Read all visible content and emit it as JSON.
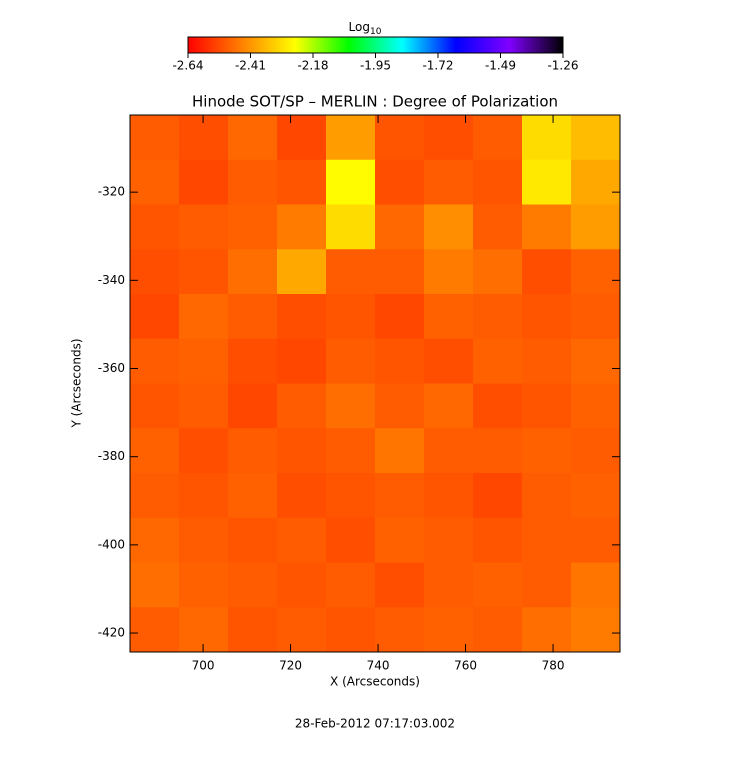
{
  "chart_data": {
    "type": "heatmap",
    "title": "Hinode SOT/SP – MERLIN : Degree of Polarization",
    "x_label": "X (Arcseconds)",
    "y_label": "Y (Arcseconds)",
    "footer": "28-Feb-2012 07:17:03.002",
    "colorbar_title": "Log",
    "colorbar_title_subscript": "10",
    "colorbar_lim": [
      -2.64,
      -1.26
    ],
    "colorbar_ticks": [
      -2.64,
      -2.41,
      -2.18,
      -1.95,
      -1.72,
      -1.49,
      -1.26
    ],
    "colormap": [
      "#ff0000",
      "#ff8000",
      "#ffff00",
      "#00ff00",
      "#00ffff",
      "#0000ff",
      "#8000ff",
      "#000000"
    ],
    "xlim": [
      683.3,
      795.3
    ],
    "xticks": [
      700,
      720,
      740,
      760,
      780
    ],
    "ylim": [
      -424.3,
      -302.5
    ],
    "yticks": [
      -320,
      -340,
      -360,
      -380,
      -400,
      -420
    ],
    "z": [
      [
        -2.5,
        -2.52,
        -2.48,
        -2.53,
        -2.4,
        -2.51,
        -2.52,
        -2.5,
        -2.3,
        -2.35
      ],
      [
        -2.49,
        -2.53,
        -2.5,
        -2.51,
        -2.25,
        -2.52,
        -2.5,
        -2.51,
        -2.28,
        -2.38
      ],
      [
        -2.51,
        -2.5,
        -2.49,
        -2.45,
        -2.3,
        -2.48,
        -2.42,
        -2.5,
        -2.45,
        -2.4
      ],
      [
        -2.52,
        -2.51,
        -2.47,
        -2.38,
        -2.5,
        -2.5,
        -2.45,
        -2.47,
        -2.52,
        -2.49
      ],
      [
        -2.53,
        -2.48,
        -2.5,
        -2.52,
        -2.51,
        -2.53,
        -2.49,
        -2.5,
        -2.51,
        -2.5
      ],
      [
        -2.5,
        -2.49,
        -2.52,
        -2.53,
        -2.5,
        -2.51,
        -2.52,
        -2.49,
        -2.5,
        -2.48
      ],
      [
        -2.51,
        -2.5,
        -2.53,
        -2.5,
        -2.47,
        -2.5,
        -2.48,
        -2.52,
        -2.51,
        -2.49
      ],
      [
        -2.49,
        -2.52,
        -2.5,
        -2.51,
        -2.5,
        -2.46,
        -2.5,
        -2.5,
        -2.49,
        -2.5
      ],
      [
        -2.5,
        -2.51,
        -2.49,
        -2.52,
        -2.51,
        -2.5,
        -2.51,
        -2.53,
        -2.5,
        -2.49
      ],
      [
        -2.48,
        -2.5,
        -2.51,
        -2.5,
        -2.52,
        -2.49,
        -2.5,
        -2.51,
        -2.5,
        -2.5
      ],
      [
        -2.47,
        -2.49,
        -2.5,
        -2.51,
        -2.5,
        -2.52,
        -2.5,
        -2.49,
        -2.5,
        -2.46
      ],
      [
        -2.5,
        -2.48,
        -2.51,
        -2.5,
        -2.51,
        -2.5,
        -2.49,
        -2.5,
        -2.47,
        -2.45
      ]
    ]
  }
}
